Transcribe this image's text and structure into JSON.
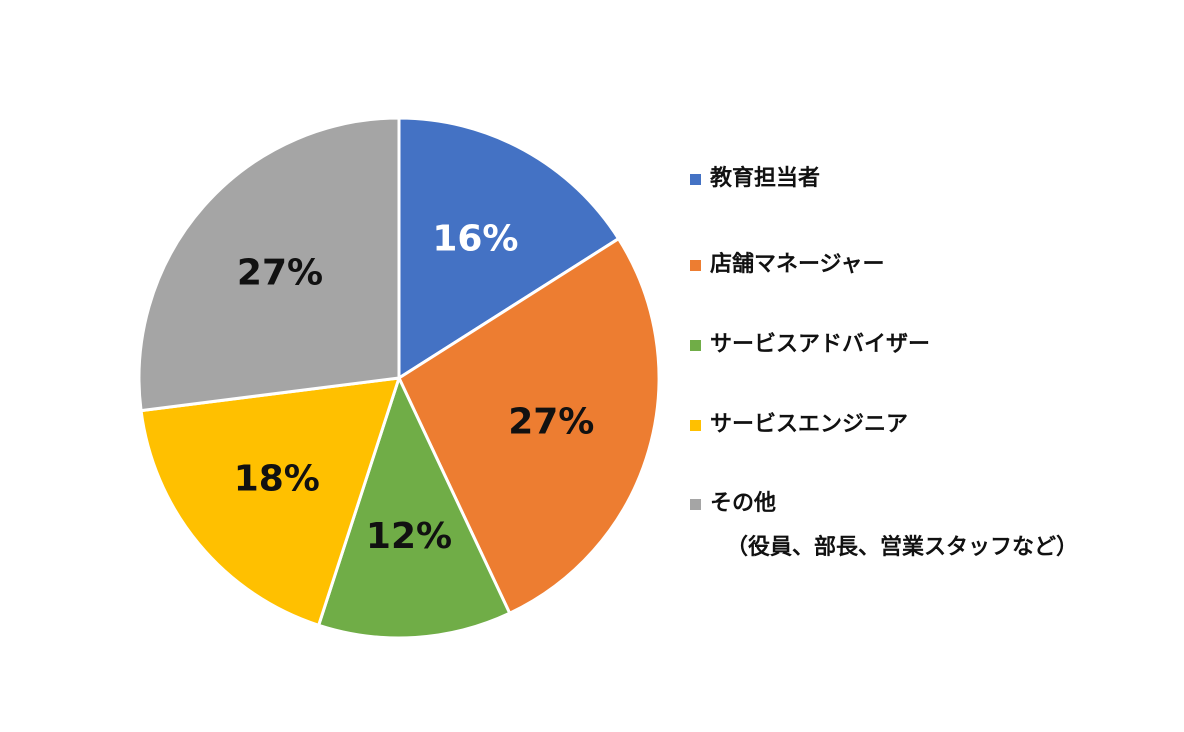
{
  "chart_data": {
    "type": "pie",
    "title": "",
    "categories": [
      "教育担当者",
      "店舗マネージャー",
      "サービスアドバイザー",
      "サービスエンジニア",
      "その他"
    ],
    "values": [
      16,
      27,
      12,
      18,
      27
    ],
    "value_labels": [
      "16%",
      "27%",
      "12%",
      "18%",
      "27%"
    ],
    "colors": [
      "#4472C4",
      "#ED7D31",
      "#70AD47",
      "#FFC000",
      "#A5A5A5"
    ],
    "label_colors": [
      "#FFFFFF",
      "#111111",
      "#111111",
      "#111111",
      "#111111"
    ],
    "legend": {
      "position": "right",
      "entries": [
        {
          "label": "教育担当者",
          "sublabel": ""
        },
        {
          "label": "店舗マネージャー",
          "sublabel": ""
        },
        {
          "label": "サービスアドバイザー",
          "sublabel": ""
        },
        {
          "label": "サービスエンジニア",
          "sublabel": ""
        },
        {
          "label": "その他",
          "sublabel": "（役員、部長、営業スタッフなど）"
        }
      ]
    }
  }
}
